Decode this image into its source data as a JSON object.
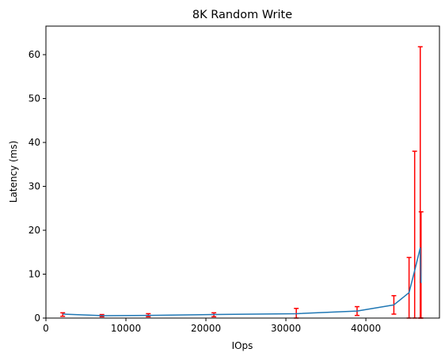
{
  "chart_data": {
    "type": "line",
    "title": "8K  Random Write",
    "xlabel": "IOps",
    "ylabel": "Latency (ms)",
    "xlim": [
      0,
      49200
    ],
    "ylim": [
      0,
      66.5
    ],
    "xticks": [
      0,
      10000,
      20000,
      30000,
      40000
    ],
    "xtick_labels": [
      "0",
      "10000",
      "20000",
      "30000",
      "40000"
    ],
    "yticks": [
      0,
      10,
      20,
      30,
      40,
      50,
      60
    ],
    "ytick_labels": [
      "0",
      "10",
      "20",
      "30",
      "40",
      "50",
      "60"
    ],
    "grid": false,
    "legend": "none",
    "series": [
      {
        "color": "#1f77b4",
        "error_color": "#ff0000",
        "points": [
          {
            "x": 2100,
            "y": 0.9,
            "err_low": 0.4,
            "err_high": 1.2
          },
          {
            "x": 7000,
            "y": 0.55,
            "err_low": 0.3,
            "err_high": 0.8
          },
          {
            "x": 12800,
            "y": 0.6,
            "err_low": 0.3,
            "err_high": 1.0
          },
          {
            "x": 21000,
            "y": 0.8,
            "err_low": 0.3,
            "err_high": 1.2
          },
          {
            "x": 31300,
            "y": 1.0,
            "err_low": 0.0,
            "err_high": 2.2
          },
          {
            "x": 38900,
            "y": 1.6,
            "err_low": 0.6,
            "err_high": 2.6
          },
          {
            "x": 43500,
            "y": 3.0,
            "err_low": 0.9,
            "err_high": 5.1
          },
          {
            "x": 45400,
            "y": 5.8,
            "err_low": 0.0,
            "err_high": 13.8
          },
          {
            "x": 46100,
            "y": 10.8,
            "err_low": 0.0,
            "err_high": 38.0
          },
          {
            "x": 46800,
            "y": 16.0,
            "err_low": 0.0,
            "err_high": 61.8
          },
          {
            "x": 46900,
            "y": 8.0,
            "err_low": 0.0,
            "err_high": 24.2
          }
        ]
      }
    ]
  }
}
